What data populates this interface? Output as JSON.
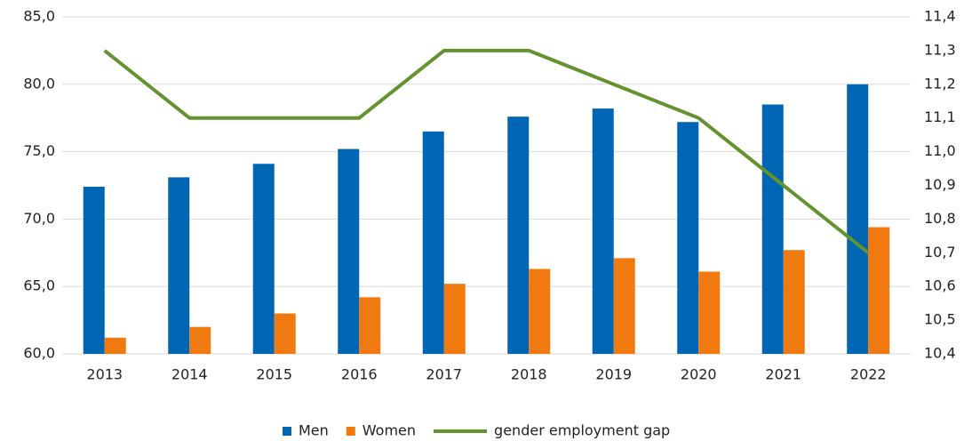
{
  "chart_data": {
    "type": "bar",
    "categories": [
      "2013",
      "2014",
      "2015",
      "2016",
      "2017",
      "2018",
      "2019",
      "2020",
      "2021",
      "2022"
    ],
    "series": [
      {
        "name": "Men",
        "color": "#0066b3",
        "values": [
          72.4,
          73.1,
          74.1,
          75.2,
          76.5,
          77.6,
          78.2,
          77.2,
          78.5,
          80.0
        ]
      },
      {
        "name": "Women",
        "color": "#f07a10",
        "values": [
          61.2,
          62.0,
          63.0,
          64.2,
          65.2,
          66.3,
          67.1,
          66.1,
          67.7,
          69.4
        ]
      },
      {
        "name": "gender employment gap",
        "color": "#64922f",
        "type": "line",
        "axis": "y2",
        "values": [
          11.3,
          11.1,
          11.1,
          11.1,
          11.3,
          11.3,
          11.2,
          11.1,
          10.9,
          10.7
        ]
      }
    ],
    "ylim": [
      60,
      85
    ],
    "yticks": [
      {
        "value": 60,
        "label": "60,0"
      },
      {
        "value": 65,
        "label": "65,0"
      },
      {
        "value": 70,
        "label": "70,0"
      },
      {
        "value": 75,
        "label": "75,0"
      },
      {
        "value": 80,
        "label": "80,0"
      },
      {
        "value": 85,
        "label": "85,0"
      }
    ],
    "y2lim": [
      10.4,
      11.4
    ],
    "y2ticks": [
      {
        "value": 10.4,
        "label": "10,4"
      },
      {
        "value": 10.5,
        "label": "10,5"
      },
      {
        "value": 10.6,
        "label": "10,6"
      },
      {
        "value": 10.7,
        "label": "10,7"
      },
      {
        "value": 10.8,
        "label": "10,8"
      },
      {
        "value": 10.9,
        "label": "10,9"
      },
      {
        "value": 11.0,
        "label": "11,0"
      },
      {
        "value": 11.1,
        "label": "11,1"
      },
      {
        "value": 11.2,
        "label": "11,2"
      },
      {
        "value": 11.3,
        "label": "11,3"
      },
      {
        "value": 11.4,
        "label": "11,4"
      }
    ],
    "grid": true,
    "legend": "bottom"
  }
}
